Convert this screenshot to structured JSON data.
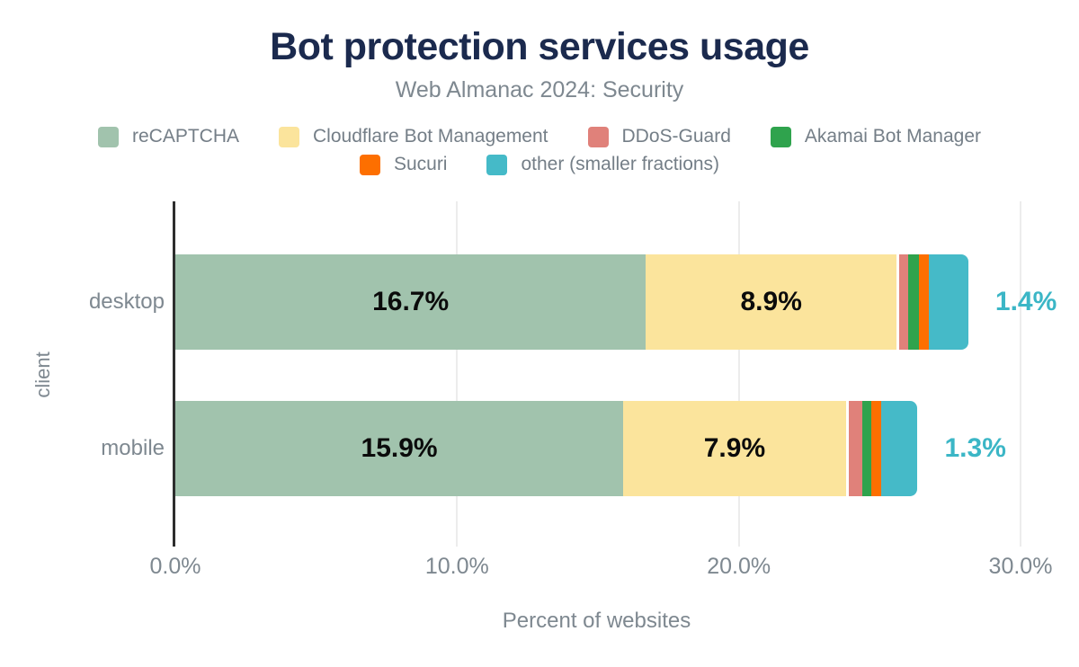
{
  "title": "Bot protection services usage",
  "subtitle": "Web Almanac 2024: Security",
  "colors": {
    "title_text": "#1b2a4e",
    "gray_text": "#7e8890",
    "axis_line": "#2e2e2e",
    "gridline": "#ececec",
    "inside_label_text": "#0b0b0b",
    "outside_label_text": "#3bb6c6"
  },
  "chart_data": {
    "type": "bar",
    "orientation": "horizontal",
    "stacked": true,
    "grid": "vertical",
    "legend_position": "top",
    "legend_row_split": 4,
    "categories": [
      "desktop",
      "mobile"
    ],
    "series": [
      {
        "name": "reCAPTCHA",
        "color": "#a1c3ad",
        "values": [
          16.7,
          15.9
        ],
        "show_inside_label": true
      },
      {
        "name": "Cloudflare Bot Management",
        "color": "#fbe49c",
        "values": [
          8.9,
          7.9
        ],
        "show_inside_label": true
      },
      {
        "name": "DDoS-Guard",
        "color": "#e0817a",
        "values": [
          0.3,
          0.5
        ],
        "show_inside_label": false
      },
      {
        "name": "Akamai Bot Manager",
        "color": "#2fa34d",
        "values": [
          0.4,
          0.3
        ],
        "show_inside_label": false
      },
      {
        "name": "Sucuri",
        "color": "#fd6f00",
        "values": [
          0.35,
          0.35
        ],
        "show_inside_label": false
      },
      {
        "name": "other (smaller fractions)",
        "color": "#45bac8",
        "values": [
          1.4,
          1.3
        ],
        "show_inside_label": false
      }
    ],
    "inside_labels": {
      "desktop": [
        "16.7%",
        "8.9%"
      ],
      "mobile": [
        "15.9%",
        "7.9%"
      ]
    },
    "outside_labels": {
      "desktop": "1.4%",
      "mobile": "1.3%"
    },
    "x_ticks": [
      {
        "label": "0.0%",
        "value": 0
      },
      {
        "label": "10.0%",
        "value": 10
      },
      {
        "label": "20.0%",
        "value": 20
      },
      {
        "label": "30.0%",
        "value": 30
      }
    ],
    "xlim": [
      0,
      30
    ],
    "xlabel": "Percent of websites",
    "ylabel": "client"
  }
}
